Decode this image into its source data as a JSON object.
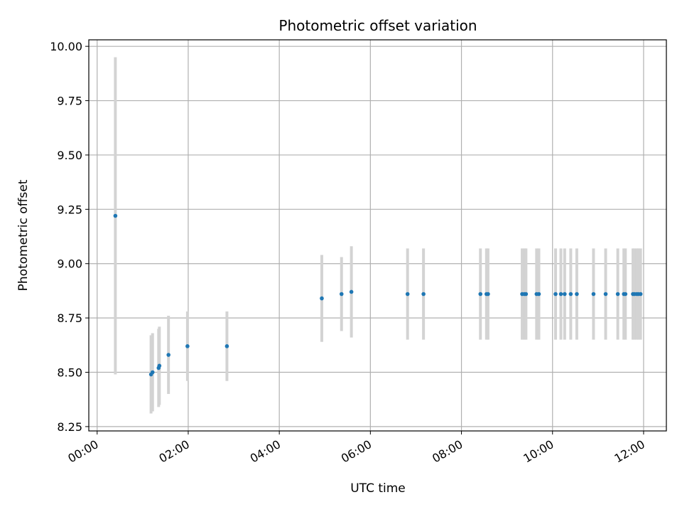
{
  "chart_data": {
    "type": "scatter",
    "title": "Photometric offset variation",
    "xlabel": "UTC time",
    "ylabel": "Photometric offset",
    "x_unit": "hours UTC",
    "xlim": [
      "-00:11",
      "12:30"
    ],
    "ylim": [
      8.23,
      10.03
    ],
    "xticks": [
      "00:00",
      "02:00",
      "04:00",
      "06:00",
      "08:00",
      "10:00",
      "12:00"
    ],
    "yticks": [
      "8.25",
      "8.50",
      "8.75",
      "9.00",
      "9.25",
      "9.50",
      "9.75",
      "10.00"
    ],
    "grid": true,
    "error_bar_color": "#d3d3d3",
    "point_color": "#1f77b4",
    "x": [
      "00:24",
      "01:11",
      "01:13",
      "01:21",
      "01:22",
      "01:34",
      "01:59",
      "02:51",
      "04:56",
      "05:22",
      "05:35",
      "06:49",
      "07:10",
      "08:25",
      "08:33",
      "08:35",
      "09:20",
      "09:23",
      "09:25",
      "09:39",
      "09:42",
      "10:04",
      "10:11",
      "10:16",
      "10:24",
      "10:32",
      "10:54",
      "11:10",
      "11:26",
      "11:34",
      "11:36",
      "11:46",
      "11:48",
      "11:51",
      "11:53",
      "11:56"
    ],
    "y": [
      9.22,
      8.49,
      8.5,
      8.52,
      8.53,
      8.58,
      8.62,
      8.62,
      8.84,
      8.86,
      8.87,
      8.86,
      8.86,
      8.86,
      8.86,
      8.86,
      8.86,
      8.86,
      8.86,
      8.86,
      8.86,
      8.86,
      8.86,
      8.86,
      8.86,
      8.86,
      8.86,
      8.86,
      8.86,
      8.86,
      8.86,
      8.86,
      8.86,
      8.86,
      8.86,
      8.86
    ],
    "yerr": [
      0.73,
      0.18,
      0.18,
      0.18,
      0.18,
      0.18,
      0.16,
      0.16,
      0.2,
      0.17,
      0.21,
      0.21,
      0.21,
      0.21,
      0.21,
      0.21,
      0.21,
      0.21,
      0.21,
      0.21,
      0.21,
      0.21,
      0.21,
      0.21,
      0.21,
      0.21,
      0.21,
      0.21,
      0.21,
      0.21,
      0.21,
      0.21,
      0.21,
      0.21,
      0.21,
      0.21
    ]
  }
}
